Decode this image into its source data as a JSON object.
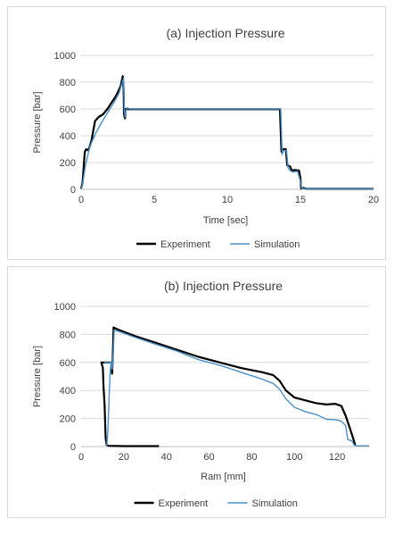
{
  "chart_data": [
    {
      "type": "line",
      "title": "(a) Injection Pressure",
      "xlabel": "Time [sec]",
      "ylabel": "Pressure [bar]",
      "xlim": [
        0,
        20
      ],
      "ylim": [
        0,
        1000
      ],
      "xticks": [
        "0",
        "5",
        "10",
        "15",
        "20"
      ],
      "yticks": [
        "0",
        "200",
        "400",
        "600",
        "800",
        "1000"
      ],
      "grid": "horizontal",
      "legend_position": "bottom",
      "series": [
        {
          "name": "Experiment",
          "color": "#000000",
          "points": [
            [
              0,
              5
            ],
            [
              0.1,
              50
            ],
            [
              0.25,
              280
            ],
            [
              0.35,
              300
            ],
            [
              0.5,
              290
            ],
            [
              0.7,
              360
            ],
            [
              0.95,
              510
            ],
            [
              1.2,
              540
            ],
            [
              1.5,
              560
            ],
            [
              1.8,
              600
            ],
            [
              2.1,
              650
            ],
            [
              2.4,
              700
            ],
            [
              2.7,
              770
            ],
            [
              2.85,
              845
            ],
            [
              2.9,
              760
            ],
            [
              2.93,
              560
            ],
            [
              3.0,
              530
            ],
            [
              3.05,
              600
            ],
            [
              3.2,
              598
            ],
            [
              5,
              598
            ],
            [
              8,
              598
            ],
            [
              11,
              598
            ],
            [
              13.6,
              598
            ],
            [
              13.7,
              280
            ],
            [
              13.8,
              300
            ],
            [
              14.0,
              300
            ],
            [
              14.1,
              180
            ],
            [
              14.3,
              170
            ],
            [
              14.4,
              140
            ],
            [
              14.6,
              145
            ],
            [
              14.9,
              140
            ],
            [
              15.0,
              80
            ],
            [
              15.05,
              5
            ],
            [
              15.2,
              10
            ],
            [
              15.4,
              5
            ],
            [
              16,
              5
            ],
            [
              18,
              5
            ],
            [
              20,
              5
            ]
          ]
        },
        {
          "name": "Simulation",
          "color": "#4a90c8",
          "points": [
            [
              0,
              0
            ],
            [
              0.1,
              40
            ],
            [
              0.3,
              180
            ],
            [
              0.6,
              320
            ],
            [
              1.0,
              420
            ],
            [
              1.4,
              500
            ],
            [
              1.8,
              570
            ],
            [
              2.2,
              640
            ],
            [
              2.6,
              720
            ],
            [
              2.82,
              800
            ],
            [
              2.9,
              830
            ],
            [
              2.95,
              600
            ],
            [
              3.0,
              540
            ],
            [
              3.05,
              580
            ],
            [
              3.15,
              610
            ],
            [
              3.3,
              600
            ],
            [
              5,
              600
            ],
            [
              8,
              600
            ],
            [
              11,
              600
            ],
            [
              13.65,
              600
            ],
            [
              13.75,
              260
            ],
            [
              13.85,
              290
            ],
            [
              14.05,
              290
            ],
            [
              14.15,
              160
            ],
            [
              14.3,
              140
            ],
            [
              14.45,
              130
            ],
            [
              14.8,
              135
            ],
            [
              15.0,
              60
            ],
            [
              15.1,
              5
            ],
            [
              15.5,
              5
            ],
            [
              18,
              5
            ],
            [
              20,
              5
            ]
          ]
        }
      ]
    },
    {
      "type": "line",
      "title": "(b) Injection Pressure",
      "xlabel": "Ram [mm]",
      "ylabel": "Pressure [bar]",
      "xlim": [
        0,
        135
      ],
      "ylim": [
        0,
        1000
      ],
      "xticks": [
        "0",
        "20",
        "40",
        "60",
        "80",
        "100",
        "120"
      ],
      "yticks": [
        "0",
        "200",
        "400",
        "600",
        "800",
        "1000"
      ],
      "grid": "horizontal",
      "legend_position": "bottom",
      "series": [
        {
          "name": "Experiment",
          "color": "#000000",
          "points": [
            [
              36.5,
              3
            ],
            [
              20,
              3
            ],
            [
              13,
              5
            ],
            [
              12,
              10
            ],
            [
              11.5,
              60
            ],
            [
              11,
              300
            ],
            [
              10.5,
              430
            ],
            [
              10.2,
              560
            ],
            [
              9.5,
              600
            ],
            [
              13,
              600
            ],
            [
              14.2,
              600
            ],
            [
              14.5,
              520
            ],
            [
              14.8,
              620
            ],
            [
              15.2,
              850
            ],
            [
              18,
              830
            ],
            [
              25,
              790
            ],
            [
              35,
              740
            ],
            [
              45,
              690
            ],
            [
              55,
              640
            ],
            [
              65,
              600
            ],
            [
              75,
              560
            ],
            [
              85,
              530
            ],
            [
              90,
              510
            ],
            [
              93,
              470
            ],
            [
              96,
              400
            ],
            [
              100,
              350
            ],
            [
              105,
              330
            ],
            [
              110,
              310
            ],
            [
              115,
              300
            ],
            [
              119,
              305
            ],
            [
              122,
              290
            ],
            [
              124,
              220
            ],
            [
              126,
              130
            ],
            [
              127.5,
              60
            ],
            [
              128.5,
              10
            ]
          ]
        },
        {
          "name": "Simulation",
          "color": "#4a90c8",
          "points": [
            [
              12,
              0
            ],
            [
              12.5,
              100
            ],
            [
              13,
              300
            ],
            [
              13.5,
              500
            ],
            [
              14,
              600
            ],
            [
              11,
              600
            ],
            [
              13.5,
              600
            ],
            [
              14.3,
              600
            ],
            [
              14.6,
              550
            ],
            [
              15,
              660
            ],
            [
              15.5,
              830
            ],
            [
              18,
              820
            ],
            [
              25,
              780
            ],
            [
              35,
              730
            ],
            [
              45,
              680
            ],
            [
              55,
              620
            ],
            [
              65,
              580
            ],
            [
              75,
              530
            ],
            [
              85,
              480
            ],
            [
              90,
              450
            ],
            [
              93,
              410
            ],
            [
              96,
              340
            ],
            [
              100,
              280
            ],
            [
              105,
              250
            ],
            [
              110,
              230
            ],
            [
              115,
              195
            ],
            [
              120,
              190
            ],
            [
              122,
              180
            ],
            [
              124,
              150
            ],
            [
              125,
              50
            ],
            [
              127,
              40
            ],
            [
              128,
              10
            ],
            [
              129,
              5
            ],
            [
              135,
              5
            ]
          ]
        }
      ]
    }
  ]
}
